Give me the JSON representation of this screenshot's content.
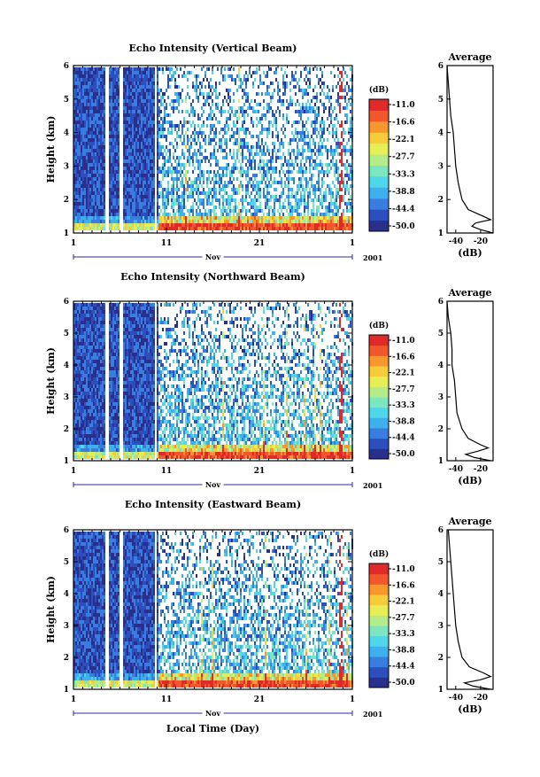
{
  "chart_data": [
    {
      "type": "heatmap",
      "title": "Echo Intensity (Vertical Beam)",
      "ylabel": "Height (km)",
      "xlabel": "",
      "x_ticks": [
        "1",
        "11",
        "21",
        "1"
      ],
      "y_ticks": [
        "1",
        "2",
        "3",
        "4",
        "5",
        "6"
      ],
      "ylim": [
        1,
        6
      ],
      "xlim_days": [
        1,
        31
      ],
      "month_label": "Nov",
      "year_label": "2001",
      "colorbar": {
        "unit": "(dB)",
        "ticks": [
          "-11.0",
          "-16.6",
          "-22.1",
          "-27.7",
          "-33.3",
          "-38.8",
          "-44.4",
          "-50.0"
        ]
      },
      "profile": {
        "title": "Average",
        "xlabel": "(dB)",
        "x_ticks": [
          "-40",
          "-20"
        ],
        "y_ticks": [
          "1",
          "2",
          "3",
          "4",
          "5",
          "6"
        ],
        "height_km": [
          1.0,
          1.1,
          1.2,
          1.3,
          1.4,
          1.5,
          1.7,
          2.0,
          2.5,
          3.0,
          3.5,
          4.0,
          4.5,
          5.0,
          5.5,
          6.0
        ],
        "db": [
          -10,
          -20,
          -27,
          -24,
          -12,
          -18,
          -30,
          -35,
          -38,
          -40,
          -41,
          -42,
          -44,
          -45,
          -46,
          -47
        ]
      }
    },
    {
      "type": "heatmap",
      "title": "Echo Intensity (Northward Beam)",
      "ylabel": "Height (km)",
      "xlabel": "",
      "x_ticks": [
        "1",
        "11",
        "21",
        "1"
      ],
      "y_ticks": [
        "1",
        "2",
        "3",
        "4",
        "5",
        "6"
      ],
      "ylim": [
        1,
        6
      ],
      "xlim_days": [
        1,
        31
      ],
      "month_label": "Nov",
      "year_label": "2001",
      "colorbar": {
        "unit": "(dB)",
        "ticks": [
          "-11.0",
          "-16.6",
          "-22.1",
          "-27.7",
          "-33.3",
          "-38.8",
          "-44.4",
          "-50.0"
        ]
      },
      "profile": {
        "title": "Average",
        "xlabel": "(dB)",
        "x_ticks": [
          "-40",
          "-20"
        ],
        "y_ticks": [
          "1",
          "2",
          "3",
          "4",
          "5",
          "6"
        ],
        "height_km": [
          1.0,
          1.1,
          1.2,
          1.3,
          1.4,
          1.5,
          1.7,
          2.0,
          2.5,
          3.0,
          3.5,
          4.0,
          4.5,
          5.0,
          5.5,
          6.0
        ],
        "db": [
          -12,
          -25,
          -32,
          -22,
          -14,
          -20,
          -30,
          -35,
          -39,
          -40,
          -41,
          -43,
          -43,
          -44,
          -46,
          -47
        ]
      }
    },
    {
      "type": "heatmap",
      "title": "Echo Intensity (Eastward Beam)",
      "ylabel": "Height (km)",
      "xlabel": "Local Time (Day)",
      "x_ticks": [
        "1",
        "11",
        "21",
        "1"
      ],
      "y_ticks": [
        "1",
        "2",
        "3",
        "4",
        "5",
        "6"
      ],
      "ylim": [
        1,
        6
      ],
      "xlim_days": [
        1,
        31
      ],
      "month_label": "Nov",
      "year_label": "2001",
      "colorbar": {
        "unit": "(dB)",
        "ticks": [
          "-11.0",
          "-16.6",
          "-22.1",
          "-27.7",
          "-33.3",
          "-38.8",
          "-44.4",
          "-50.0"
        ]
      },
      "profile": {
        "title": "Average",
        "xlabel": "(dB)",
        "x_ticks": [
          "-40",
          "-20"
        ],
        "y_ticks": [
          "1",
          "2",
          "3",
          "4",
          "5",
          "6"
        ],
        "height_km": [
          1.0,
          1.1,
          1.2,
          1.3,
          1.4,
          1.5,
          1.7,
          2.0,
          2.5,
          3.0,
          3.5,
          4.0,
          4.5,
          5.0,
          5.5,
          6.0
        ],
        "db": [
          -12,
          -26,
          -33,
          -20,
          -12,
          -17,
          -29,
          -35,
          -38,
          -40,
          -41,
          -42,
          -43,
          -44,
          -45,
          -46
        ]
      }
    }
  ],
  "colormap": [
    "#2b2f8c",
    "#2c4fbd",
    "#3a7de0",
    "#3fb0ee",
    "#4fd6e8",
    "#7be6c0",
    "#b4ec8a",
    "#e6ee55",
    "#f7cc3a",
    "#f7972e",
    "#f0582c",
    "#e02a2a"
  ]
}
